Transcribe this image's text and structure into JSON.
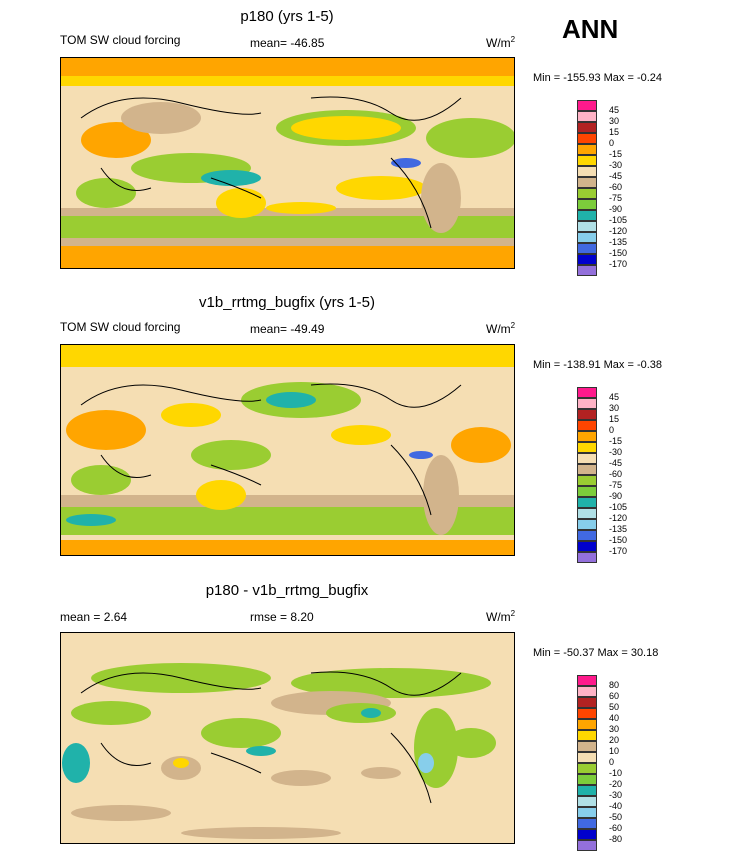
{
  "season": "ANN",
  "panels": [
    {
      "id": "p1",
      "title": "p180 (yrs 1-5)",
      "left_label": "TOM SW cloud forcing",
      "stat_label": "mean= -46.85",
      "units_base": "W/m",
      "units_exp": "2",
      "minmax": "Min = -155.93 Max =  -0.24",
      "colorbar": {
        "levels": [
          "45",
          "30",
          "15",
          "0",
          "-15",
          "-30",
          "-45",
          "-60",
          "-75",
          "-90",
          "-105",
          "-120",
          "-135",
          "-150",
          "-170"
        ],
        "colors": [
          "#ff1a8c",
          "#ffb3c6",
          "#b22222",
          "#ff4500",
          "#ffa500",
          "#ffd700",
          "#f5deb3",
          "#d2b48c",
          "#9acd32",
          "#7ccd3b",
          "#20b2aa",
          "#b0e0e6",
          "#87ceeb",
          "#4169e1",
          "#0000cd",
          "#9370db"
        ]
      }
    },
    {
      "id": "p2",
      "title": "v1b_rrtmg_bugfix (yrs 1-5)",
      "left_label": "TOM SW cloud forcing",
      "stat_label": "mean= -49.49",
      "units_base": "W/m",
      "units_exp": "2",
      "minmax": "Min = -138.91 Max =  -0.38",
      "colorbar": {
        "levels": [
          "45",
          "30",
          "15",
          "0",
          "-15",
          "-30",
          "-45",
          "-60",
          "-75",
          "-90",
          "-105",
          "-120",
          "-135",
          "-150",
          "-170"
        ],
        "colors": [
          "#ff1a8c",
          "#ffb3c6",
          "#b22222",
          "#ff4500",
          "#ffa500",
          "#ffd700",
          "#f5deb3",
          "#d2b48c",
          "#9acd32",
          "#7ccd3b",
          "#20b2aa",
          "#b0e0e6",
          "#87ceeb",
          "#4169e1",
          "#0000cd",
          "#9370db"
        ]
      }
    },
    {
      "id": "p3",
      "title": "p180 - v1b_rrtmg_bugfix",
      "left_label": "mean =   2.64",
      "stat_label": "rmse =   8.20",
      "units_base": "W/m",
      "units_exp": "2",
      "minmax": "Min = -50.37 Max =  30.18",
      "colorbar": {
        "levels": [
          "80",
          "60",
          "50",
          "40",
          "30",
          "20",
          "10",
          "0",
          "-10",
          "-20",
          "-30",
          "-40",
          "-50",
          "-60",
          "-80"
        ],
        "colors": [
          "#ff1a8c",
          "#ffb3c6",
          "#b22222",
          "#ff4500",
          "#ffa500",
          "#ffd700",
          "#d2b48c",
          "#f5deb3",
          "#9acd32",
          "#7ccd3b",
          "#20b2aa",
          "#b0e0e6",
          "#87ceeb",
          "#4169e1",
          "#0000cd",
          "#9370db"
        ]
      }
    }
  ],
  "chart_data": [
    {
      "type": "heatmap",
      "title": "p180 (yrs 1-5)",
      "variable": "TOM SW cloud forcing",
      "mean": -46.85,
      "min": -155.93,
      "max": -0.24,
      "units": "W/m2",
      "contour_levels": [
        45,
        30,
        15,
        0,
        -15,
        -30,
        -45,
        -60,
        -75,
        -90,
        -105,
        -120,
        -135,
        -150,
        -170
      ]
    },
    {
      "type": "heatmap",
      "title": "v1b_rrtmg_bugfix (yrs 1-5)",
      "variable": "TOM SW cloud forcing",
      "mean": -49.49,
      "min": -138.91,
      "max": -0.38,
      "units": "W/m2",
      "contour_levels": [
        45,
        30,
        15,
        0,
        -15,
        -30,
        -45,
        -60,
        -75,
        -90,
        -105,
        -120,
        -135,
        -150,
        -170
      ]
    },
    {
      "type": "heatmap",
      "title": "p180 - v1b_rrtmg_bugfix",
      "mean": 2.64,
      "rmse": 8.2,
      "min": -50.37,
      "max": 30.18,
      "units": "W/m2",
      "contour_levels": [
        80,
        60,
        50,
        40,
        30,
        20,
        10,
        0,
        -10,
        -20,
        -30,
        -40,
        -50,
        -60,
        -80
      ]
    }
  ]
}
